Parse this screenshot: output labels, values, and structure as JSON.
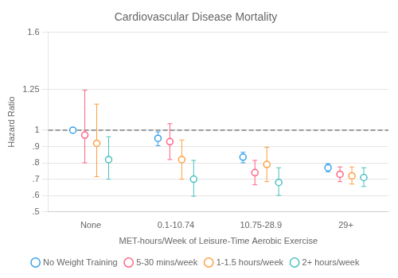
{
  "chart_data": {
    "type": "scatter",
    "title": "Cardiovascular Disease Mortality",
    "x_label": "MET-hours/Week of Leisure-Time Aerobic Exercise",
    "y_label": "Hazard Ratio",
    "categories": [
      "None",
      "0.1-10.74",
      "10.75-28.9",
      "29+"
    ],
    "ylim": [
      0.5,
      1.6
    ],
    "yticks": [
      {
        "value": 0.5,
        "label": ".5"
      },
      {
        "value": 0.6,
        "label": ".6"
      },
      {
        "value": 0.7,
        "label": ".7"
      },
      {
        "value": 0.8,
        "label": ".8"
      },
      {
        "value": 0.9,
        "label": ".9"
      },
      1,
      1.25,
      1.6
    ],
    "reference_line": 1.0,
    "grid": true,
    "legend": "bottom",
    "marker": "circle",
    "series": [
      {
        "name": "No Weight Training",
        "values": [
          1.0,
          0.95,
          0.835,
          0.77
        ],
        "ci_low": [
          1.0,
          0.905,
          0.8,
          0.745
        ],
        "ci_high": [
          1.0,
          0.99,
          0.865,
          0.795
        ]
      },
      {
        "name": "5-30 mins/week",
        "values": [
          0.97,
          0.93,
          0.74,
          0.73
        ],
        "ci_low": [
          0.8,
          0.82,
          0.665,
          0.685
        ],
        "ci_high": [
          1.245,
          1.04,
          0.815,
          0.775
        ]
      },
      {
        "name": "1-1.5 hours/week",
        "values": [
          0.92,
          0.82,
          0.79,
          0.72
        ],
        "ci_low": [
          0.715,
          0.7,
          0.685,
          0.67
        ],
        "ci_high": [
          1.16,
          0.94,
          0.895,
          0.775
        ]
      },
      {
        "name": "2+ hours/week",
        "values": [
          0.82,
          0.7,
          0.68,
          0.71
        ],
        "ci_low": [
          0.7,
          0.595,
          0.6,
          0.655
        ],
        "ci_high": [
          0.96,
          0.815,
          0.77,
          0.77
        ]
      }
    ]
  }
}
